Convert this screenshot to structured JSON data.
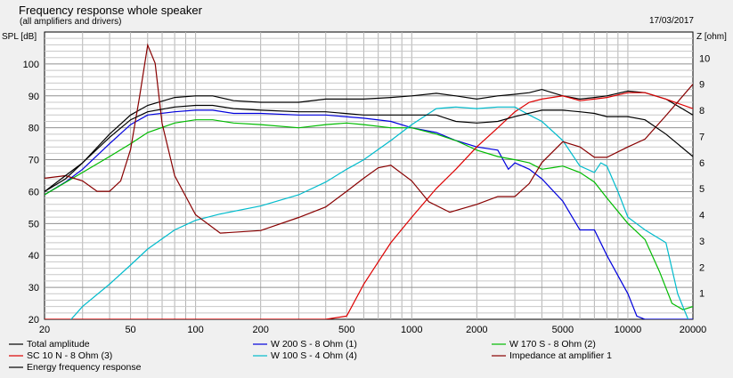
{
  "chart_data": {
    "type": "line",
    "title": "Frequency response whole speaker",
    "subtitle": "(all amplifiers and drivers)",
    "date": "17/03/2017",
    "ylabel": "SPL [dB]",
    "y2label": "Z [ohm]",
    "x_scale": "log",
    "xlim": [
      20,
      20000
    ],
    "ylim": [
      20,
      110
    ],
    "y2lim": [
      0,
      11
    ],
    "x_ticks": [
      20,
      50,
      100,
      200,
      500,
      1000,
      2000,
      5000,
      10000,
      20000
    ],
    "x_tick_labels": [
      "20",
      "50",
      "100",
      "200",
      "500",
      "1000",
      "2000",
      "5000",
      "10000",
      "20000"
    ],
    "y_ticks": [
      20,
      30,
      40,
      50,
      60,
      70,
      80,
      90,
      100
    ],
    "y2_ticks": [
      1,
      2,
      3,
      4,
      5,
      6,
      7,
      8,
      9,
      10
    ],
    "grid": true,
    "legend_position": "bottom",
    "series": [
      {
        "name": "Total amplitude",
        "axis": "left",
        "color": "#000000",
        "points": [
          [
            20,
            60
          ],
          [
            25,
            64
          ],
          [
            30,
            69
          ],
          [
            40,
            78
          ],
          [
            50,
            84
          ],
          [
            60,
            87
          ],
          [
            80,
            89.5
          ],
          [
            100,
            90
          ],
          [
            120,
            90
          ],
          [
            150,
            88.5
          ],
          [
            200,
            88
          ],
          [
            300,
            88
          ],
          [
            400,
            89
          ],
          [
            600,
            89
          ],
          [
            800,
            89.5
          ],
          [
            1000,
            90
          ],
          [
            1300,
            90.8
          ],
          [
            1600,
            90
          ],
          [
            2000,
            89
          ],
          [
            2500,
            90
          ],
          [
            3000,
            90.5
          ],
          [
            3500,
            91
          ],
          [
            4000,
            92
          ],
          [
            5000,
            90
          ],
          [
            6000,
            89
          ],
          [
            7000,
            89.5
          ],
          [
            8000,
            90
          ],
          [
            10000,
            91.5
          ],
          [
            12000,
            91
          ],
          [
            15000,
            89
          ],
          [
            20000,
            84
          ]
        ]
      },
      {
        "name": "W 200 S - 8 Ohm (1)",
        "axis": "left",
        "color": "#0000dd",
        "points": [
          [
            20,
            59
          ],
          [
            25,
            63
          ],
          [
            30,
            67
          ],
          [
            40,
            75
          ],
          [
            50,
            81
          ],
          [
            60,
            84
          ],
          [
            80,
            85
          ],
          [
            100,
            85.5
          ],
          [
            120,
            85.5
          ],
          [
            150,
            84.5
          ],
          [
            200,
            84.5
          ],
          [
            300,
            84
          ],
          [
            400,
            84
          ],
          [
            600,
            83
          ],
          [
            800,
            82
          ],
          [
            1000,
            80
          ],
          [
            1300,
            78.5
          ],
          [
            1600,
            76
          ],
          [
            2000,
            74
          ],
          [
            2500,
            73
          ],
          [
            2800,
            67
          ],
          [
            3000,
            69
          ],
          [
            3500,
            67
          ],
          [
            4000,
            64
          ],
          [
            5000,
            57
          ],
          [
            6000,
            48
          ],
          [
            7000,
            48
          ],
          [
            8000,
            40
          ],
          [
            10000,
            28
          ],
          [
            11000,
            21
          ],
          [
            12000,
            20
          ],
          [
            20000,
            20
          ]
        ]
      },
      {
        "name": "W 170 S - 8 Ohm (2)",
        "axis": "left",
        "color": "#00bb00",
        "points": [
          [
            20,
            59
          ],
          [
            30,
            66
          ],
          [
            40,
            71
          ],
          [
            50,
            75
          ],
          [
            60,
            78.5
          ],
          [
            80,
            81.5
          ],
          [
            100,
            82.5
          ],
          [
            120,
            82.5
          ],
          [
            150,
            81.5
          ],
          [
            200,
            81
          ],
          [
            300,
            80
          ],
          [
            400,
            81
          ],
          [
            500,
            81.5
          ],
          [
            600,
            81
          ],
          [
            800,
            80
          ],
          [
            1000,
            80
          ],
          [
            1300,
            78
          ],
          [
            1600,
            76
          ],
          [
            2000,
            73
          ],
          [
            2500,
            71
          ],
          [
            3000,
            70
          ],
          [
            3500,
            69
          ],
          [
            4000,
            67
          ],
          [
            4500,
            67.5
          ],
          [
            5000,
            68
          ],
          [
            6000,
            66
          ],
          [
            7000,
            63
          ],
          [
            8000,
            58
          ],
          [
            10000,
            50
          ],
          [
            12000,
            45
          ],
          [
            14000,
            35
          ],
          [
            16000,
            25
          ],
          [
            18000,
            23
          ],
          [
            20000,
            24
          ]
        ]
      },
      {
        "name": "SC 10 N - 8 Ohm (3)",
        "axis": "left",
        "color": "#dd0000",
        "points": [
          [
            20,
            20
          ],
          [
            400,
            20
          ],
          [
            500,
            21
          ],
          [
            600,
            31
          ],
          [
            700,
            38
          ],
          [
            800,
            44
          ],
          [
            1000,
            52
          ],
          [
            1300,
            61
          ],
          [
            1600,
            67
          ],
          [
            2000,
            74
          ],
          [
            2500,
            80
          ],
          [
            3000,
            85
          ],
          [
            3500,
            88
          ],
          [
            4000,
            89
          ],
          [
            5000,
            90
          ],
          [
            6000,
            88.5
          ],
          [
            7000,
            89
          ],
          [
            8000,
            89.5
          ],
          [
            10000,
            91
          ],
          [
            12000,
            91
          ],
          [
            15000,
            89
          ],
          [
            20000,
            86
          ]
        ]
      },
      {
        "name": "W 100 S - 4 Ohm (4)",
        "axis": "left",
        "color": "#00bbcc",
        "points": [
          [
            20,
            14
          ],
          [
            25,
            18
          ],
          [
            30,
            24
          ],
          [
            40,
            31
          ],
          [
            50,
            37
          ],
          [
            60,
            42
          ],
          [
            80,
            48
          ],
          [
            100,
            51
          ],
          [
            130,
            53
          ],
          [
            200,
            55.5
          ],
          [
            300,
            59
          ],
          [
            400,
            63
          ],
          [
            500,
            67
          ],
          [
            600,
            70
          ],
          [
            800,
            76
          ],
          [
            1000,
            81
          ],
          [
            1300,
            86
          ],
          [
            1600,
            86.5
          ],
          [
            2000,
            86
          ],
          [
            2500,
            86.5
          ],
          [
            3000,
            86.5
          ],
          [
            3500,
            84
          ],
          [
            4000,
            82
          ],
          [
            5000,
            76
          ],
          [
            6000,
            68
          ],
          [
            7000,
            66
          ],
          [
            7500,
            69
          ],
          [
            8000,
            68
          ],
          [
            9000,
            60
          ],
          [
            10000,
            52
          ],
          [
            12000,
            48
          ],
          [
            15000,
            44
          ],
          [
            17000,
            28
          ],
          [
            19000,
            20
          ],
          [
            20000,
            16
          ]
        ]
      },
      {
        "name": "Impedance at amplifier 1",
        "axis": "right",
        "color": "#880000",
        "points": [
          [
            20,
            5.4
          ],
          [
            25,
            5.5
          ],
          [
            30,
            5.3
          ],
          [
            35,
            4.9
          ],
          [
            40,
            4.9
          ],
          [
            45,
            5.3
          ],
          [
            50,
            6.5
          ],
          [
            55,
            8.5
          ],
          [
            60,
            10.5
          ],
          [
            65,
            9.8
          ],
          [
            70,
            7.5
          ],
          [
            80,
            5.5
          ],
          [
            100,
            4.0
          ],
          [
            130,
            3.3
          ],
          [
            200,
            3.4
          ],
          [
            300,
            3.9
          ],
          [
            400,
            4.3
          ],
          [
            500,
            4.9
          ],
          [
            600,
            5.4
          ],
          [
            700,
            5.8
          ],
          [
            800,
            5.9
          ],
          [
            1000,
            5.3
          ],
          [
            1200,
            4.5
          ],
          [
            1500,
            4.1
          ],
          [
            2000,
            4.4
          ],
          [
            2500,
            4.7
          ],
          [
            3000,
            4.7
          ],
          [
            3500,
            5.2
          ],
          [
            4000,
            6.0
          ],
          [
            5000,
            6.8
          ],
          [
            6000,
            6.6
          ],
          [
            7000,
            6.2
          ],
          [
            8000,
            6.2
          ],
          [
            10000,
            6.6
          ],
          [
            12000,
            6.9
          ],
          [
            15000,
            7.8
          ],
          [
            20000,
            9.0
          ]
        ]
      },
      {
        "name": "Energy frequency response",
        "axis": "left",
        "color": "#000000",
        "points": [
          [
            20,
            60
          ],
          [
            25,
            65
          ],
          [
            30,
            69
          ],
          [
            40,
            77
          ],
          [
            50,
            82.5
          ],
          [
            60,
            85
          ],
          [
            80,
            86.5
          ],
          [
            100,
            87
          ],
          [
            120,
            87
          ],
          [
            150,
            86
          ],
          [
            200,
            85.5
          ],
          [
            300,
            85
          ],
          [
            400,
            85
          ],
          [
            600,
            84
          ],
          [
            800,
            84
          ],
          [
            1000,
            84
          ],
          [
            1300,
            84
          ],
          [
            1600,
            82
          ],
          [
            2000,
            81.5
          ],
          [
            2500,
            82
          ],
          [
            3000,
            83.5
          ],
          [
            4000,
            85.5
          ],
          [
            5000,
            85.5
          ],
          [
            6000,
            85
          ],
          [
            7000,
            84.5
          ],
          [
            8000,
            83.5
          ],
          [
            10000,
            83.5
          ],
          [
            12000,
            82.5
          ],
          [
            15000,
            78
          ],
          [
            20000,
            71
          ]
        ]
      }
    ]
  }
}
